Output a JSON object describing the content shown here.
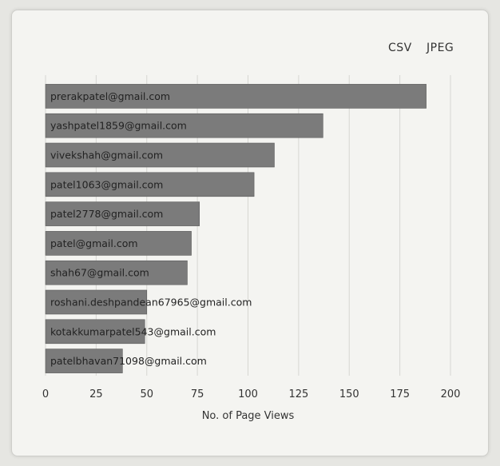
{
  "toolbar": {
    "csv_label": "CSV",
    "jpeg_label": "JPEG"
  },
  "chart_data": {
    "type": "bar",
    "orientation": "horizontal",
    "categories": [
      "prerakpatel@gmail.com",
      "yashpatel1859@gmail.com",
      "vivekshah@gmail.com",
      "patel1063@gmail.com",
      "patel2778@gmail.com",
      "patel@gmail.com",
      "shah67@gmail.com",
      "roshani.deshpandean67965@gmail.com",
      "kotakkumarpatel543@gmail.com",
      "patelbhavan71098@gmail.com"
    ],
    "values": [
      188,
      137,
      113,
      103,
      76,
      72,
      70,
      50,
      49,
      38
    ],
    "xlabel": "No. of Page Views",
    "ylabel": "",
    "xlim": [
      0,
      200
    ],
    "xticks": [
      0,
      25,
      50,
      75,
      100,
      125,
      150,
      175,
      200
    ],
    "bar_color": "#7b7b7b",
    "grid": "vertical",
    "legend": "none"
  }
}
